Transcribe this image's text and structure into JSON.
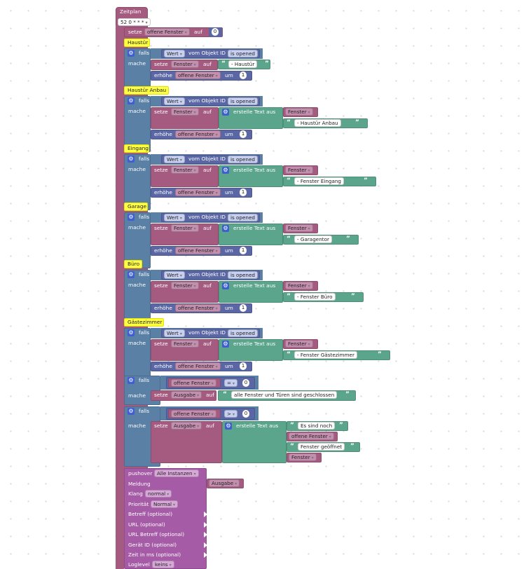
{
  "schedule": {
    "title": "Zeitplan",
    "cron": "52 0 * * *"
  },
  "init": {
    "set_label": "setze",
    "variable": "offene Fenster",
    "to_label": "auf",
    "value": "0"
  },
  "labels": {
    "if": "falls",
    "do": "mache",
    "value": "Wert",
    "of_object_id": "vom Objekt ID",
    "set": "setze",
    "to": "auf",
    "create_text": "erstelle Text aus",
    "increment": "erhöhe",
    "by": "um"
  },
  "groups": [
    {
      "comment": "Haustür",
      "object": "is opened",
      "text_var": "Fenster",
      "text": " - Haustür",
      "inc_var": "offene Fenster",
      "inc_value": "1"
    },
    {
      "comment": "Haustür Anbau",
      "object": "is opened",
      "text_var": "Fenster",
      "join_var": "Fenster",
      "text": " - Haustür Anbau",
      "inc_var": "offene Fenster",
      "inc_value": "1"
    },
    {
      "comment": "Eingang",
      "object": "is opened",
      "text_var": "Fenster",
      "join_var": "Fenster",
      "text": " - Fenster Eingang",
      "inc_var": "offene Fenster",
      "inc_value": "1"
    },
    {
      "comment": "Garage",
      "object": "is opened",
      "text_var": "Fenster",
      "join_var": "Fenster",
      "text": " - Garagentor",
      "inc_var": "offene Fenster",
      "inc_value": "1"
    },
    {
      "comment": "Büro",
      "object": "is opened",
      "text_var": "Fenster",
      "join_var": "Fenster",
      "text": " - Fenster Büro",
      "inc_var": "offene Fenster",
      "inc_value": "1"
    },
    {
      "comment": "Gästezimmer",
      "object": "is opened",
      "text_var": "Fenster",
      "join_var": "Fenster",
      "text": " - Fenster Gästezimmer",
      "inc_var": "offene Fenster",
      "inc_value": "1"
    }
  ],
  "check_zero": {
    "var": "offene Fenster",
    "op": "=",
    "value": "0",
    "set_var": "Ausgabe",
    "text": "alle Fenster und Türen sind geschlossen"
  },
  "check_gt": {
    "var": "offene Fenster",
    "op": ">",
    "value": "0",
    "set_var": "Ausgabe",
    "text1": "Es sind noch",
    "join_var": "offene Fenster",
    "text2": "Fenster geöffnet",
    "join_var2": "Fenster"
  },
  "pushover": {
    "label": "pushover",
    "instance": "Alle Instanzen",
    "message_label": "Meldung",
    "message_var": "Ausgabe",
    "sound_label": "Klang",
    "sound": "normal",
    "priority_label": "Priorität",
    "priority": "Normal",
    "subject_label": "Betreff (optional)",
    "url_label": "URL (optional)",
    "url_subject_label": "URL Betreff (optional)",
    "device_label": "Gerät ID (optional)",
    "time_label": "Zeit in ms (optional)",
    "loglevel_label": "Loglevel",
    "loglevel": "keins"
  }
}
